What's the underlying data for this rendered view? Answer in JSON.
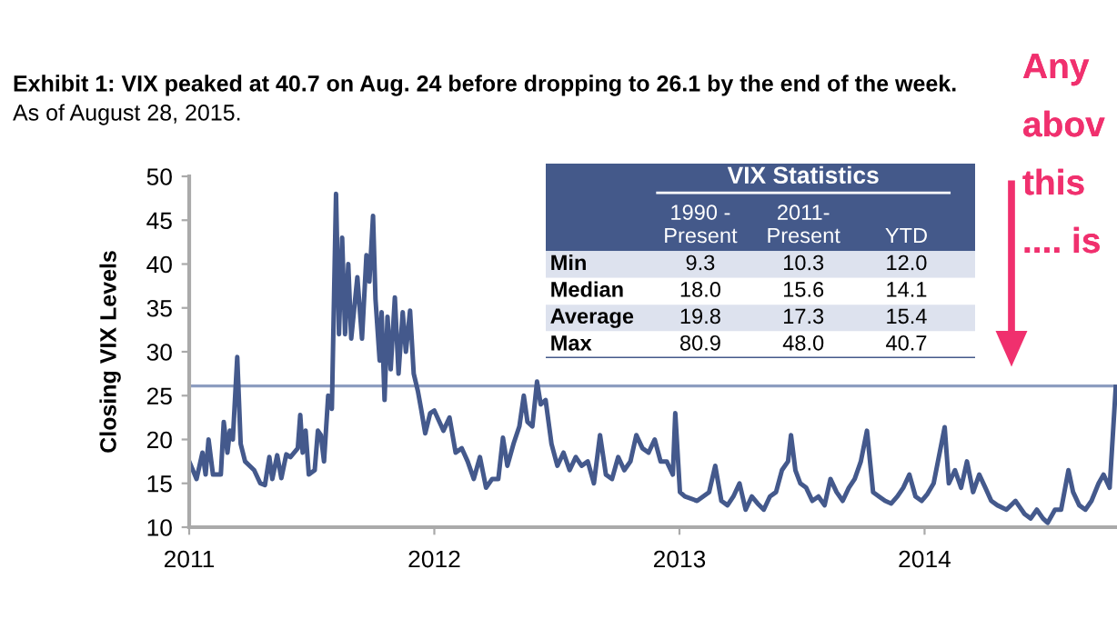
{
  "chart_data": [
    {
      "type": "line",
      "title": "Exhibit 1: VIX peaked at 40.7 on Aug. 24 before dropping to 26.1 by the end of the week.",
      "subtitle": "As of August 28, 2015.",
      "ylabel": "Closing VIX Levels",
      "series": [
        {
          "color": "#44598c",
          "x": [
            2011.0,
            2011.03,
            2011.054,
            2011.067,
            2011.079,
            2011.097,
            2011.129,
            2011.141,
            2011.156,
            2011.166,
            2011.178,
            2011.196,
            2011.21,
            2011.228,
            2011.265,
            2011.29,
            2011.309,
            2011.327,
            2011.339,
            2011.359,
            2011.376,
            2011.396,
            2011.413,
            2011.443,
            2011.453,
            2011.463,
            2011.475,
            2011.488,
            2011.512,
            2011.525,
            2011.537,
            2011.55,
            2011.567,
            2011.582,
            2011.599,
            2011.611,
            2011.624,
            2011.636,
            2011.649,
            2011.661,
            2011.686,
            2011.705,
            2011.723,
            2011.735,
            2011.75,
            2011.76,
            2011.777,
            2011.785,
            2011.797,
            2011.809,
            2011.822,
            2011.839,
            2011.854,
            2011.871,
            2011.884,
            2011.901,
            2011.916,
            2011.933,
            2011.946,
            2011.963,
            2011.983,
            2012.0,
            2012.037,
            2012.062,
            2012.087,
            2012.112,
            2012.136,
            2012.161,
            2012.186,
            2012.211,
            2012.236,
            2012.261,
            2012.28,
            2012.298,
            2012.323,
            2012.347,
            2012.365,
            2012.38,
            2012.4,
            2012.419,
            2012.434,
            2012.454,
            2012.478,
            2012.502,
            2012.527,
            2012.552,
            2012.577,
            2012.601,
            2012.626,
            2012.651,
            2012.676,
            2012.7,
            2012.725,
            2012.75,
            2012.775,
            2012.8,
            2012.824,
            2012.849,
            2012.874,
            2012.899,
            2012.923,
            2012.948,
            2012.973,
            2012.983,
            2013.002,
            2013.022,
            2013.072,
            2013.121,
            2013.146,
            2013.171,
            2013.196,
            2013.22,
            2013.245,
            2013.27,
            2013.295,
            2013.319,
            2013.344,
            2013.369,
            2013.394,
            2013.418,
            2013.443,
            2013.455,
            2013.473,
            2013.493,
            2013.517,
            2013.542,
            2013.567,
            2013.592,
            2013.616,
            2013.641,
            2013.666,
            2013.691,
            2013.715,
            2013.74,
            2013.765,
            2013.79,
            2013.814,
            2013.839,
            2013.864,
            2013.889,
            2013.913,
            2013.938,
            2013.963,
            2013.988,
            2014.012,
            2014.037,
            2014.082,
            2014.099,
            2014.124,
            2014.149,
            2014.173,
            2014.198,
            2014.223,
            2014.248,
            2014.272,
            2014.297,
            2014.334,
            2014.371,
            2014.408,
            2014.433,
            2014.458,
            2014.483,
            2014.502,
            2014.532,
            2014.557,
            2014.587,
            2014.606,
            2014.631,
            2014.656,
            2014.681,
            2014.71,
            2014.73,
            2014.755,
            2014.78
          ],
          "values": [
            17.5,
            15.5,
            18.5,
            16,
            20,
            16,
            16,
            22,
            18.5,
            21,
            20,
            29.4,
            19.5,
            17.5,
            16.5,
            15,
            14.8,
            18,
            15.5,
            18.2,
            15.6,
            18.3,
            18,
            19,
            22.8,
            18.5,
            21,
            16,
            16.5,
            21,
            20.5,
            17.5,
            25,
            23.5,
            48,
            32,
            43,
            32,
            40,
            31.5,
            38.5,
            31.5,
            41,
            38,
            45.5,
            36,
            29,
            34.5,
            24.5,
            34,
            28,
            36.2,
            27.5,
            34.5,
            30,
            34.7,
            27.5,
            25.5,
            23.5,
            20.7,
            23,
            23.3,
            21,
            22.5,
            18.5,
            19,
            17.5,
            15.5,
            18,
            14.5,
            15.5,
            15.5,
            20.2,
            17,
            19.5,
            21.5,
            25,
            22,
            21.5,
            26.6,
            24,
            24.5,
            19.5,
            17,
            18.5,
            16.5,
            18,
            17,
            17.5,
            15,
            20.5,
            16,
            15.5,
            18,
            16.5,
            17.5,
            20.5,
            19,
            18.5,
            20,
            17.5,
            17.5,
            16,
            23,
            14,
            13.5,
            13,
            14,
            17,
            13,
            12.5,
            13.5,
            15,
            12,
            13.5,
            12.7,
            12,
            13.5,
            14,
            16.5,
            17.5,
            20.5,
            16.5,
            15,
            14.5,
            13,
            13.5,
            12.5,
            15.5,
            14,
            13,
            14.5,
            15.5,
            17.5,
            21,
            14,
            13.5,
            13,
            12.7,
            13.5,
            14.5,
            16,
            13.5,
            13,
            13.8,
            15,
            21.4,
            15,
            16.5,
            14.5,
            17.5,
            14,
            16,
            14.5,
            13,
            12.5,
            12,
            13,
            11.5,
            11,
            12,
            11,
            10.5,
            12,
            12,
            16.5,
            14,
            12.5,
            12,
            13,
            15,
            16,
            14.5,
            26
          ]
        }
      ],
      "xlim": [
        2011,
        2014.785
      ],
      "xticks": [
        2011,
        2012,
        2013,
        2014
      ],
      "ylim": [
        10,
        50
      ],
      "yticks": [
        10,
        15,
        20,
        25,
        30,
        35,
        40,
        45,
        50
      ],
      "ref_lines": [
        {
          "axis": "y",
          "value": 26.1,
          "color": "#8d9dc0"
        }
      ],
      "grid": false,
      "legend": false,
      "annotations": [
        "Any",
        "abov",
        "this",
        ".... is"
      ]
    },
    {
      "type": "other",
      "title": "VIX Statistics",
      "annotations": [
        "1990 -\nPresent",
        "2011-\nPresent",
        "YTD",
        "Min",
        "9.3",
        "10.3",
        "12.0",
        "Median",
        "18.0",
        "15.6",
        "14.1",
        "Average",
        "19.8",
        "17.3",
        "15.4",
        "Max",
        "80.9",
        "48.0",
        "40.7"
      ]
    }
  ]
}
